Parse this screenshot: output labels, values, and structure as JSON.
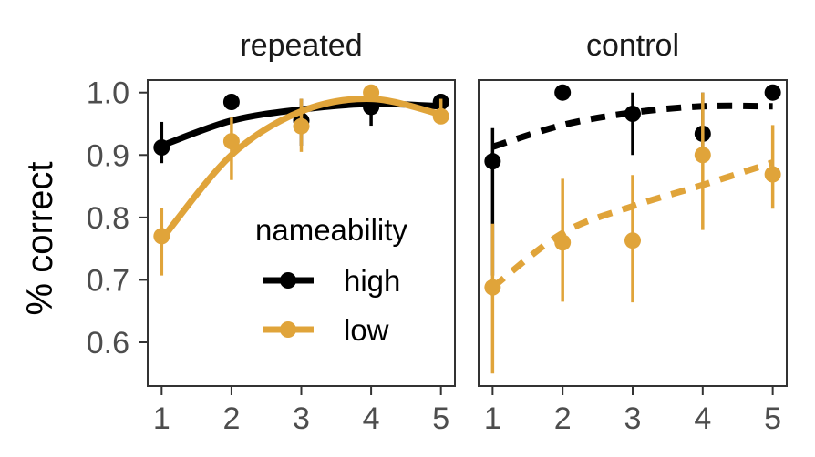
{
  "chart_data": {
    "type": "scatter",
    "ylabel": "% correct",
    "x_ticks": [
      "1",
      "2",
      "3",
      "4",
      "5"
    ],
    "y_ticks": [
      "0.6",
      "0.7",
      "0.8",
      "0.9",
      "1.0"
    ],
    "xlim": [
      0.8,
      5.2
    ],
    "ylim": [
      0.53,
      1.02
    ],
    "grid": false,
    "legend": {
      "title": "nameability",
      "placement": "inside-bottom-right-of-first-panel",
      "entries": [
        {
          "label": "high",
          "color": "#000000"
        },
        {
          "label": "low",
          "color": "#E0A43A"
        }
      ]
    },
    "panels": [
      {
        "title": "repeated",
        "fit_line_style": "solid",
        "series": [
          {
            "name": "high",
            "color": "#000000",
            "points": [
              {
                "x": 1,
                "y": 0.912,
                "ymin": 0.887,
                "ymax": 0.953
              },
              {
                "x": 2,
                "y": 0.985,
                "ymin": 0.985,
                "ymax": 0.985
              },
              {
                "x": 3,
                "y": 0.955,
                "ymin": 0.915,
                "ymax": 0.99
              },
              {
                "x": 4,
                "y": 0.977,
                "ymin": 0.947,
                "ymax": 0.995
              },
              {
                "x": 5,
                "y": 0.985,
                "ymin": 0.965,
                "ymax": 0.995
              }
            ],
            "fit": [
              0.915,
              0.955,
              0.973,
              0.982,
              0.978
            ]
          },
          {
            "name": "low",
            "color": "#E0A43A",
            "points": [
              {
                "x": 1,
                "y": 0.77,
                "ymin": 0.707,
                "ymax": 0.815
              },
              {
                "x": 2,
                "y": 0.922,
                "ymin": 0.86,
                "ymax": 0.96
              },
              {
                "x": 3,
                "y": 0.946,
                "ymin": 0.905,
                "ymax": 0.99
              },
              {
                "x": 4,
                "y": 1.0,
                "ymin": 1.0,
                "ymax": 1.0
              },
              {
                "x": 5,
                "y": 0.962,
                "ymin": 0.95,
                "ymax": 0.99
              }
            ],
            "fit": [
              0.765,
              0.9,
              0.97,
              0.99,
              0.965
            ]
          }
        ]
      },
      {
        "title": "control",
        "fit_line_style": "dashed",
        "series": [
          {
            "name": "high",
            "color": "#000000",
            "points": [
              {
                "x": 1,
                "y": 0.89,
                "ymin": 0.707,
                "ymax": 0.943
              },
              {
                "x": 2,
                "y": 1.0,
                "ymin": 1.0,
                "ymax": 1.0
              },
              {
                "x": 3,
                "y": 0.966,
                "ymin": 0.9,
                "ymax": 1.0
              },
              {
                "x": 4,
                "y": 0.934,
                "ymin": 0.9,
                "ymax": 1.0
              },
              {
                "x": 5,
                "y": 1.0,
                "ymin": 1.0,
                "ymax": 1.0
              }
            ],
            "fit": [
              0.913,
              0.948,
              0.968,
              0.978,
              0.978
            ]
          },
          {
            "name": "low",
            "color": "#E0A43A",
            "points": [
              {
                "x": 1,
                "y": 0.688,
                "ymin": 0.55,
                "ymax": 0.79
              },
              {
                "x": 2,
                "y": 0.76,
                "ymin": 0.665,
                "ymax": 0.862
              },
              {
                "x": 3,
                "y": 0.763,
                "ymin": 0.664,
                "ymax": 0.868
              },
              {
                "x": 4,
                "y": 0.9,
                "ymin": 0.78,
                "ymax": 1.0
              },
              {
                "x": 5,
                "y": 0.869,
                "ymin": 0.814,
                "ymax": 0.948
              }
            ],
            "fit": [
              0.688,
              0.775,
              0.818,
              0.852,
              0.888
            ]
          }
        ]
      }
    ]
  }
}
